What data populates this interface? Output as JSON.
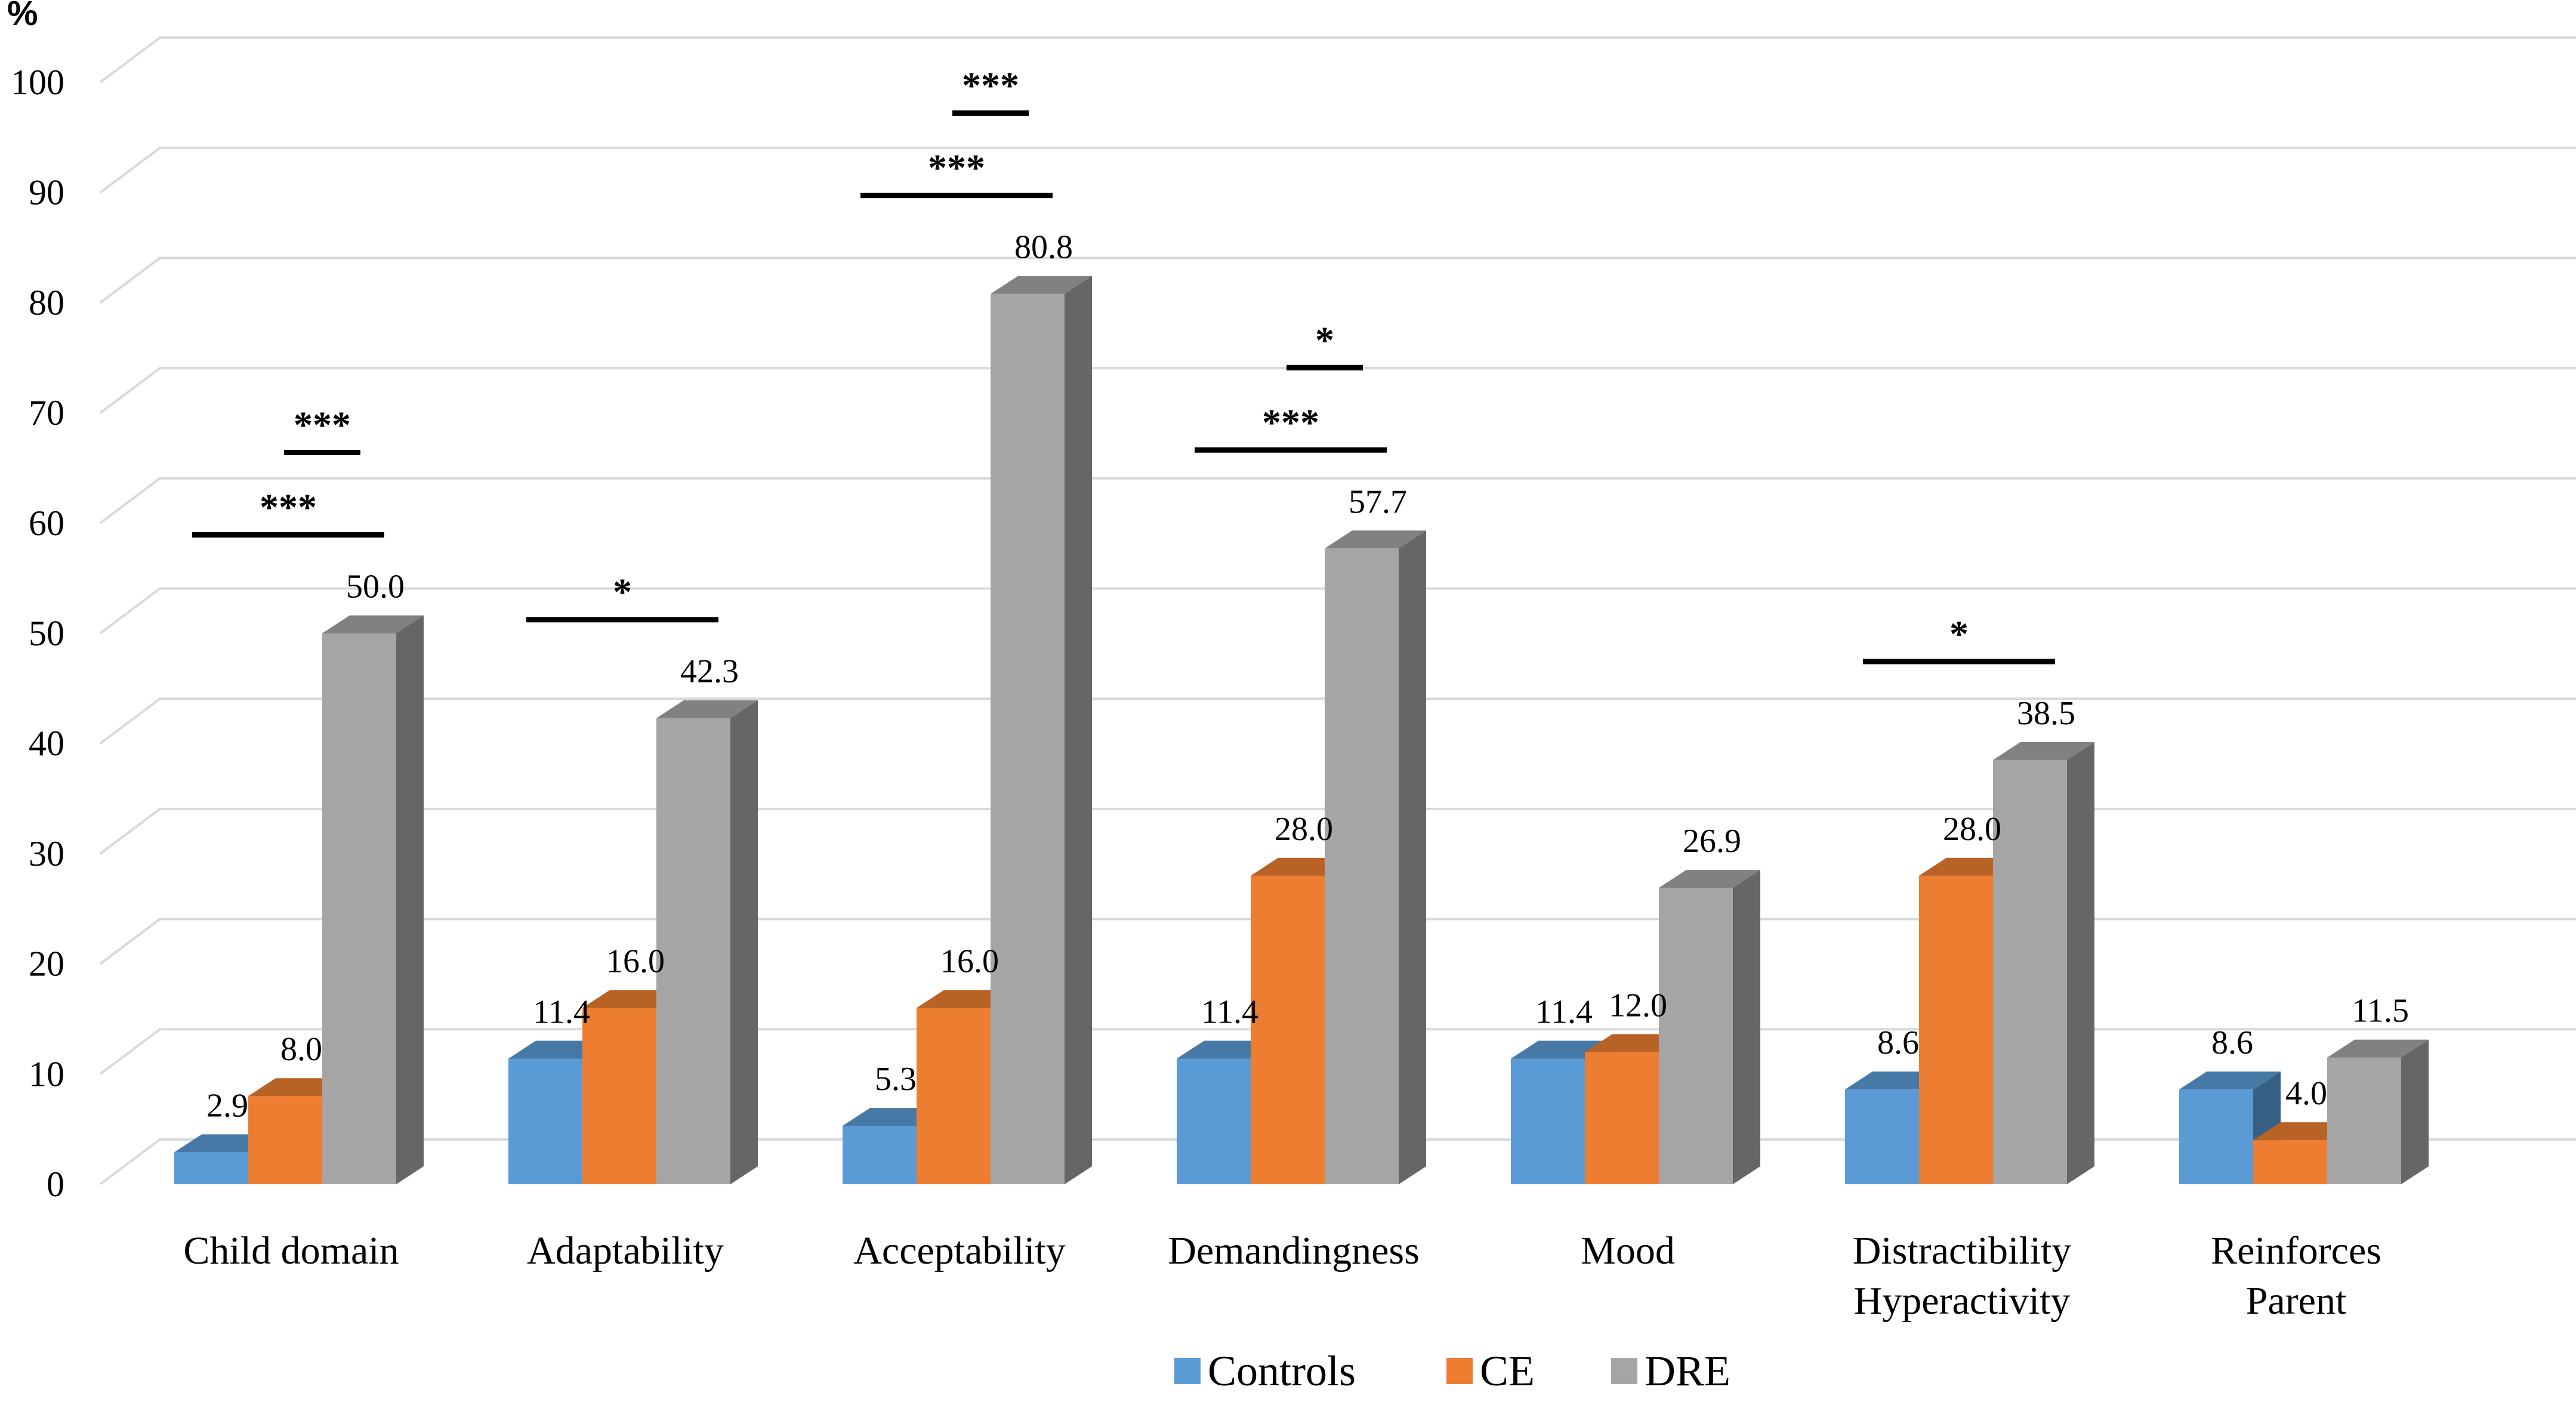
{
  "chart_data": {
    "type": "bar",
    "title": "",
    "xlabel": "",
    "ylabel": "%",
    "ylim": [
      0,
      100
    ],
    "ytick_step": 10,
    "grid": true,
    "legend_position": "bottom-center",
    "categories": [
      [
        "Child domain"
      ],
      [
        "Adaptability"
      ],
      [
        "Acceptability"
      ],
      [
        "Demandingness"
      ],
      [
        "Mood"
      ],
      [
        "Distractibility",
        "Hyperactivity"
      ],
      [
        "Reinforces",
        "Parent"
      ]
    ],
    "series": [
      {
        "name": "Controls",
        "color": "#5B9BD5",
        "values": [
          2.9,
          11.4,
          5.3,
          11.4,
          11.4,
          8.6,
          8.6
        ]
      },
      {
        "name": "CE",
        "color": "#ED7D31",
        "values": [
          8.0,
          16.0,
          16.0,
          28.0,
          12.0,
          28.0,
          4.0
        ]
      },
      {
        "name": "DRE",
        "color": "#A5A5A5",
        "values": [
          50.0,
          42.3,
          80.8,
          57.7,
          26.9,
          38.5,
          11.5
        ]
      }
    ],
    "data_labels": [
      [
        "2.9",
        "11.4",
        "5.3",
        "11.4",
        "11.4",
        "8.6",
        "8.6"
      ],
      [
        "8.0",
        "16.0",
        "16.0",
        "28.0",
        "12.0",
        "28.0",
        "4.0"
      ],
      [
        "50.0",
        "42.3",
        "80.8",
        "57.7",
        "26.9",
        "38.5",
        "11.5"
      ]
    ],
    "significance": [
      {
        "category": 0,
        "from": "Controls",
        "to": "DRE",
        "label": "***"
      },
      {
        "category": 0,
        "from": "CE",
        "to": "DRE",
        "label": "***"
      },
      {
        "category": 1,
        "from": "Controls",
        "to": "DRE",
        "label": "*"
      },
      {
        "category": 2,
        "from": "Controls",
        "to": "DRE",
        "label": "***"
      },
      {
        "category": 2,
        "from": "CE",
        "to": "DRE",
        "label": "***"
      },
      {
        "category": 3,
        "from": "Controls",
        "to": "DRE",
        "label": "***"
      },
      {
        "category": 3,
        "from": "CE",
        "to": "DRE",
        "label": "*"
      },
      {
        "category": 5,
        "from": "Controls",
        "to": "DRE",
        "label": "*"
      }
    ]
  }
}
